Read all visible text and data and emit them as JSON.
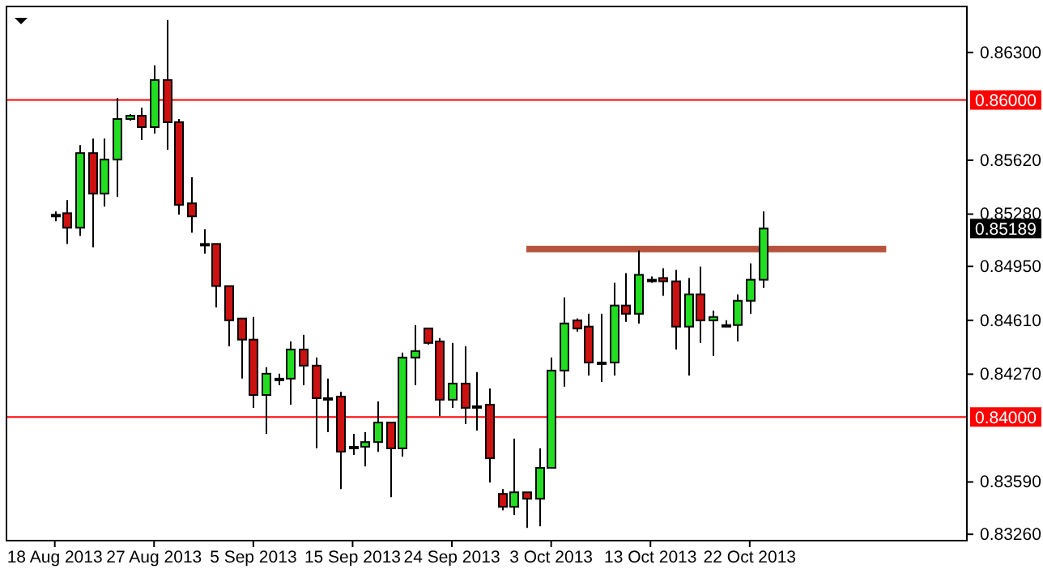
{
  "chart_data": {
    "type": "candlestick",
    "categories": [
      "18 Aug 2013",
      null,
      null,
      null,
      null,
      null,
      null,
      null,
      "27 Aug 2013",
      null,
      null,
      null,
      null,
      null,
      null,
      null,
      "5 Sep 2013",
      null,
      null,
      null,
      null,
      null,
      null,
      null,
      "15 Sep 2013",
      null,
      null,
      null,
      null,
      null,
      null,
      null,
      "24 Sep 2013",
      null,
      null,
      null,
      null,
      null,
      null,
      null,
      "3 Oct 2013",
      null,
      null,
      null,
      null,
      null,
      null,
      null,
      "13 Oct 2013",
      null,
      null,
      null,
      null,
      null,
      null,
      null,
      "22 Oct 2013",
      null,
      null,
      null,
      null,
      null,
      null,
      null,
      null,
      null,
      null,
      null,
      null,
      null,
      null,
      null,
      null,
      null
    ],
    "ohlc": [
      [
        0.85276,
        0.85297,
        0.85235,
        0.85276
      ],
      [
        0.85286,
        0.85368,
        0.85092,
        0.85194
      ],
      [
        0.85194,
        0.85716,
        0.85143,
        0.85665
      ],
      [
        0.85665,
        0.85757,
        0.85071,
        0.85409
      ],
      [
        0.85409,
        0.85757,
        0.85327,
        0.85624
      ],
      [
        0.85624,
        0.86013,
        0.85389,
        0.8588
      ],
      [
        0.8588,
        0.85911,
        0.8587,
        0.85901
      ],
      [
        0.85901,
        0.85952,
        0.85747,
        0.85829
      ],
      [
        0.85829,
        0.86218,
        0.85788,
        0.86126
      ],
      [
        0.86126,
        0.86505,
        0.85686,
        0.8586
      ],
      [
        0.8586,
        0.8588,
        0.85276,
        0.85338
      ],
      [
        0.85348,
        0.85512,
        0.85163,
        0.85266
      ],
      [
        0.85092,
        0.85184,
        0.8503,
        0.85092
      ],
      [
        0.85092,
        0.85092,
        0.84692,
        0.84826
      ],
      [
        0.84826,
        0.84826,
        0.84447,
        0.8461
      ],
      [
        0.84621,
        0.84621,
        0.84242,
        0.84488
      ],
      [
        0.84488,
        0.84631,
        0.84058,
        0.84139
      ],
      [
        0.84139,
        0.84314,
        0.83894,
        0.84273
      ],
      [
        0.84242,
        0.84273,
        0.84201,
        0.84242
      ],
      [
        0.84242,
        0.84477,
        0.84078,
        0.84426
      ],
      [
        0.84426,
        0.84518,
        0.84201,
        0.84324
      ],
      [
        0.84324,
        0.84375,
        0.83802,
        0.84119
      ],
      [
        0.84119,
        0.84242,
        0.83904,
        0.84119
      ],
      [
        0.84129,
        0.8416,
        0.83546,
        0.83781
      ],
      [
        0.83812,
        0.83894,
        0.83761,
        0.83812
      ],
      [
        0.83812,
        0.83904,
        0.83689,
        0.83842
      ],
      [
        0.83842,
        0.84098,
        0.83781,
        0.83965
      ],
      [
        0.83965,
        0.83965,
        0.83494,
        0.83802
      ],
      [
        0.83802,
        0.84406,
        0.8375,
        0.84375
      ],
      [
        0.84375,
        0.8458,
        0.84201,
        0.84416
      ],
      [
        0.84559,
        0.84559,
        0.84457,
        0.84467
      ],
      [
        0.84477,
        0.84498,
        0.84006,
        0.84109
      ],
      [
        0.84109,
        0.84467,
        0.84058,
        0.84211
      ],
      [
        0.84211,
        0.84447,
        0.83955,
        0.84058
      ],
      [
        0.84068,
        0.84283,
        0.83914,
        0.84068
      ],
      [
        0.84078,
        0.8418,
        0.83586,
        0.8374
      ],
      [
        0.83515,
        0.83546,
        0.83412,
        0.83433
      ],
      [
        0.83433,
        0.83863,
        0.83382,
        0.83525
      ],
      [
        0.83525,
        0.83525,
        0.833,
        0.83484
      ],
      [
        0.83484,
        0.83802,
        0.8331,
        0.83679
      ],
      [
        0.83679,
        0.84375,
        0.83679,
        0.84293
      ],
      [
        0.84293,
        0.84754,
        0.84191,
        0.8459
      ],
      [
        0.8461,
        0.84621,
        0.84539,
        0.84559
      ],
      [
        0.8457,
        0.84651,
        0.84262,
        0.84344
      ],
      [
        0.84344,
        0.84651,
        0.84221,
        0.84344
      ],
      [
        0.84344,
        0.84846,
        0.84262,
        0.84703
      ],
      [
        0.84703,
        0.84907,
        0.846,
        0.84651
      ],
      [
        0.84651,
        0.85051,
        0.8459,
        0.84897
      ],
      [
        0.84866,
        0.84887,
        0.84846,
        0.84866
      ],
      [
        0.84877,
        0.84938,
        0.84764,
        0.84856
      ],
      [
        0.84856,
        0.84928,
        0.84426,
        0.8457
      ],
      [
        0.8457,
        0.84877,
        0.84262,
        0.84774
      ],
      [
        0.84774,
        0.84948,
        0.84467,
        0.8461
      ],
      [
        0.8461,
        0.84672,
        0.84385,
        0.84631
      ],
      [
        0.8458,
        0.8461,
        0.8458,
        0.8458
      ],
      [
        0.8458,
        0.84774,
        0.84477,
        0.84733
      ],
      [
        0.84733,
        0.84969,
        0.84651,
        0.84866
      ],
      [
        0.84866,
        0.85297,
        0.84815,
        0.85189
      ],
      null,
      null,
      null,
      null,
      null,
      null,
      null,
      null,
      null,
      null,
      null,
      null,
      null,
      null,
      null,
      null
    ],
    "colors": [
      "#22dd22",
      "#cc1111",
      "#22dd22",
      "#cc1111",
      "#22dd22",
      "#22dd22",
      "#22dd22",
      "#cc1111",
      "#22dd22",
      "#cc1111",
      "#cc1111",
      "#cc1111",
      "#22dd22",
      "#cc1111",
      "#cc1111",
      "#cc1111",
      "#cc1111",
      "#22dd22",
      "#22dd22",
      "#22dd22",
      "#cc1111",
      "#cc1111",
      "#22dd22",
      "#cc1111",
      "#22dd22",
      "#22dd22",
      "#22dd22",
      "#cc1111",
      "#22dd22",
      "#22dd22",
      "#cc1111",
      "#cc1111",
      "#22dd22",
      "#cc1111",
      "#22dd22",
      "#cc1111",
      "#cc1111",
      "#22dd22",
      "#cc1111",
      "#22dd22",
      "#22dd22",
      "#22dd22",
      "#cc1111",
      "#cc1111",
      "#22dd22",
      "#22dd22",
      "#cc1111",
      "#22dd22",
      "#22dd22",
      "#cc1111",
      "#cc1111",
      "#22dd22",
      "#cc1111",
      "#22dd22",
      "#22dd22",
      "#22dd22",
      "#22dd22",
      "#22dd22",
      null,
      null,
      null,
      null,
      null,
      null,
      null,
      null,
      null,
      null,
      null,
      null,
      null,
      null,
      null,
      null
    ],
    "series": [
      {
        "type": "line",
        "color": "#b5533c",
        "values": [
          null,
          null,
          null,
          null,
          null,
          null,
          null,
          null,
          null,
          null,
          null,
          null,
          null,
          null,
          null,
          null,
          null,
          null,
          null,
          null,
          null,
          null,
          null,
          null,
          null,
          null,
          null,
          null,
          null,
          null,
          null,
          null,
          null,
          null,
          null,
          null,
          null,
          null,
          0.8506,
          0.8506,
          0.8506,
          0.8506,
          0.8506,
          0.8506,
          0.8506,
          0.8506,
          0.8506,
          0.8506,
          0.8506,
          0.8506,
          0.8506,
          0.8506,
          0.8506,
          0.8506,
          0.8506,
          0.8506,
          0.8506,
          0.8506,
          0.8506,
          0.8506,
          0.8506,
          0.8506,
          0.8506,
          0.8506,
          0.8506,
          0.8506,
          0.8506,
          0.8506,
          null,
          null,
          null,
          null,
          null,
          null
        ]
      }
    ],
    "ylim": [
      0.8322,
      0.8659
    ],
    "yticks": [
      {
        "value": 0.863,
        "label": "0.86300"
      },
      {
        "value": 0.8562,
        "label": "0.85620"
      },
      {
        "value": 0.8528,
        "label": "0.85280"
      },
      {
        "value": 0.8495,
        "label": "0.84950"
      },
      {
        "value": 0.8461,
        "label": "0.84610"
      },
      {
        "value": 0.8427,
        "label": "0.84270"
      },
      {
        "value": 0.8359,
        "label": "0.83590"
      },
      {
        "value": 0.8326,
        "label": "0.83260"
      }
    ],
    "ref_lines": [
      {
        "axis": "y",
        "value": 0.86,
        "label": "0.86000",
        "color": "#ff0000"
      },
      {
        "axis": "y",
        "value": 0.84,
        "label": "0.84000",
        "color": "#ff0000"
      }
    ],
    "annotations": [
      "0.85189"
    ],
    "grid": false
  }
}
